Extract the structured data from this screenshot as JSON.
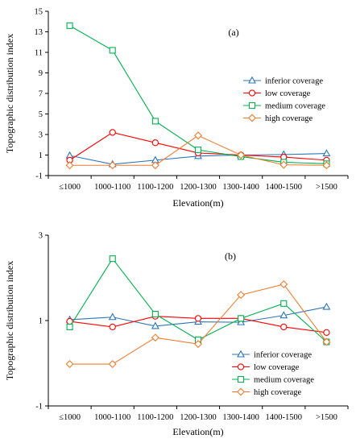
{
  "chart_data": [
    {
      "type": "line",
      "panel_label": "(a)",
      "xlabel": "Elevation(m)",
      "ylabel": "Topographic distribution index",
      "categories": [
        "≤1000",
        "1000-1100",
        "1100-1200",
        "1200-1300",
        "1300-1400",
        "1400-1500",
        ">1500"
      ],
      "yticks": [
        "-1",
        "1",
        "3",
        "5",
        "7",
        "9",
        "11",
        "13",
        "15"
      ],
      "ylim": [
        -1,
        15
      ],
      "grid": false,
      "legend_position": "right",
      "series": [
        {
          "name": "inferior coverage",
          "color": "#2e75b6",
          "marker": "triangle",
          "values": [
            0.95,
            0.1,
            0.5,
            0.9,
            1.0,
            1.05,
            1.15
          ]
        },
        {
          "name": "low coverage",
          "color": "#ff0000",
          "marker": "circle",
          "values": [
            0.5,
            3.2,
            2.2,
            1.2,
            1.0,
            0.8,
            0.5
          ]
        },
        {
          "name": "medium coverage",
          "color": "#00b050",
          "marker": "square",
          "values": [
            13.6,
            11.2,
            4.3,
            1.5,
            0.85,
            0.3,
            0.15
          ]
        },
        {
          "name": "high coverage",
          "color": "#ed7d31",
          "marker": "diamond",
          "values": [
            0.0,
            0.0,
            0.0,
            2.9,
            1.0,
            0.05,
            0.0
          ]
        }
      ]
    },
    {
      "type": "line",
      "panel_label": "(b)",
      "xlabel": "Elevation(m)",
      "ylabel": "Topographic distribution index",
      "categories": [
        "≤1000",
        "1000-1100",
        "1100-1200",
        "1200-1300",
        "1300-1400",
        "1400-1500",
        ">1500"
      ],
      "yticks": [
        "-1",
        "1",
        "3"
      ],
      "ylim": [
        -1,
        3
      ],
      "grid": false,
      "legend_position": "bottom-right",
      "series": [
        {
          "name": "inferior coverage",
          "color": "#2e75b6",
          "marker": "triangle",
          "values": [
            1.02,
            1.08,
            0.87,
            0.97,
            0.96,
            1.12,
            1.32
          ]
        },
        {
          "name": "low coverage",
          "color": "#ff0000",
          "marker": "circle",
          "values": [
            0.98,
            0.85,
            1.1,
            1.05,
            1.05,
            0.85,
            0.72
          ]
        },
        {
          "name": "medium coverage",
          "color": "#00b050",
          "marker": "square",
          "values": [
            0.85,
            2.45,
            1.15,
            0.55,
            1.05,
            1.4,
            0.5
          ]
        },
        {
          "name": "high coverage",
          "color": "#ed7d31",
          "marker": "diamond",
          "values": [
            -0.02,
            -0.02,
            0.6,
            0.45,
            1.6,
            1.85,
            0.5
          ]
        }
      ]
    }
  ]
}
